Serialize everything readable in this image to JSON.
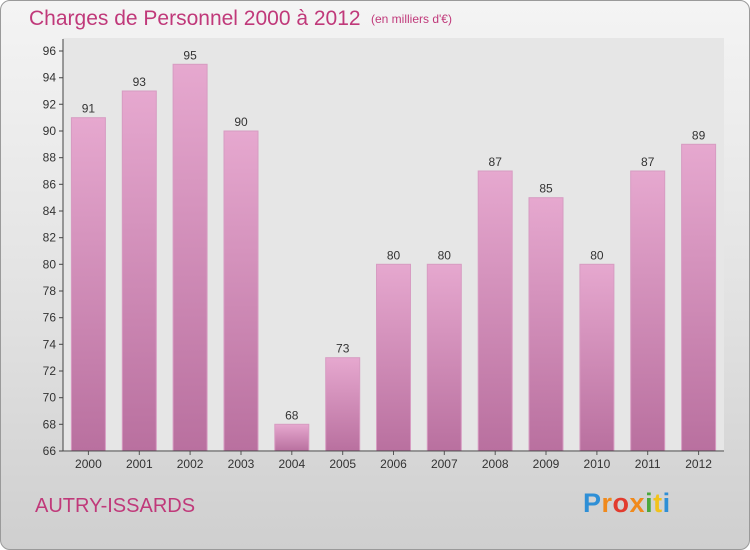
{
  "header": {
    "title": "Charges de Personnel 2000 à 2012",
    "subtitle": "(en milliers d'€)"
  },
  "footer": {
    "commune": "AUTRY-ISSARDS",
    "logo_letters": [
      "P",
      "r",
      "o",
      "x",
      "i",
      "t",
      "i"
    ],
    "logo_colors": [
      "#2e8fd6",
      "#f08a1c",
      "#e23b2e",
      "#f08a1c",
      "#4aa83c",
      "#f2c21b",
      "#2e8fd6"
    ]
  },
  "chart_data": {
    "type": "bar",
    "categories": [
      "2000",
      "2001",
      "2002",
      "2003",
      "2004",
      "2005",
      "2006",
      "2007",
      "2008",
      "2009",
      "2010",
      "2011",
      "2012"
    ],
    "values": [
      91,
      93,
      95,
      90,
      68,
      73,
      80,
      80,
      87,
      85,
      80,
      87,
      89
    ],
    "ylim": [
      66,
      96
    ],
    "yticks": [
      66,
      68,
      70,
      72,
      74,
      76,
      78,
      80,
      82,
      84,
      86,
      88,
      90,
      92,
      94,
      96
    ],
    "grid": false,
    "bar_color_top": "#e6a8cf",
    "bar_color_bottom": "#b9709f"
  }
}
